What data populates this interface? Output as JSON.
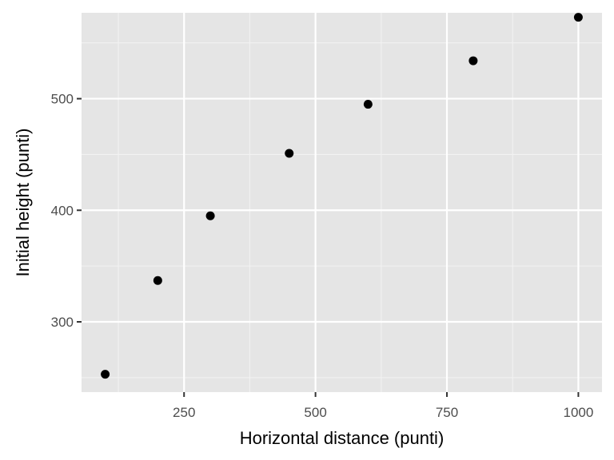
{
  "chart_data": {
    "type": "scatter",
    "xlabel": "Horizontal distance (punti)",
    "ylabel": "Initial height (punti)",
    "xlim": [
      55,
      1045
    ],
    "ylim": [
      237,
      577
    ],
    "x_ticks": [
      250,
      500,
      750,
      1000
    ],
    "x_tick_labels": [
      "250",
      "500",
      "750",
      "1000"
    ],
    "y_ticks": [
      300,
      400,
      500
    ],
    "y_tick_labels": [
      "300",
      "400",
      "500"
    ],
    "grid": true,
    "legend": "none",
    "points": [
      {
        "x": 100,
        "y": 253
      },
      {
        "x": 200,
        "y": 337
      },
      {
        "x": 300,
        "y": 395
      },
      {
        "x": 450,
        "y": 451
      },
      {
        "x": 600,
        "y": 495
      },
      {
        "x": 800,
        "y": 534
      },
      {
        "x": 1000,
        "y": 573
      }
    ],
    "colors": {
      "panel_background": "#e5e5e5",
      "grid_major": "#ffffff",
      "grid_minor": "#f2f2f2",
      "point": "#000000",
      "tick_text": "#4d4d4d",
      "axis_title": "#000000"
    }
  }
}
